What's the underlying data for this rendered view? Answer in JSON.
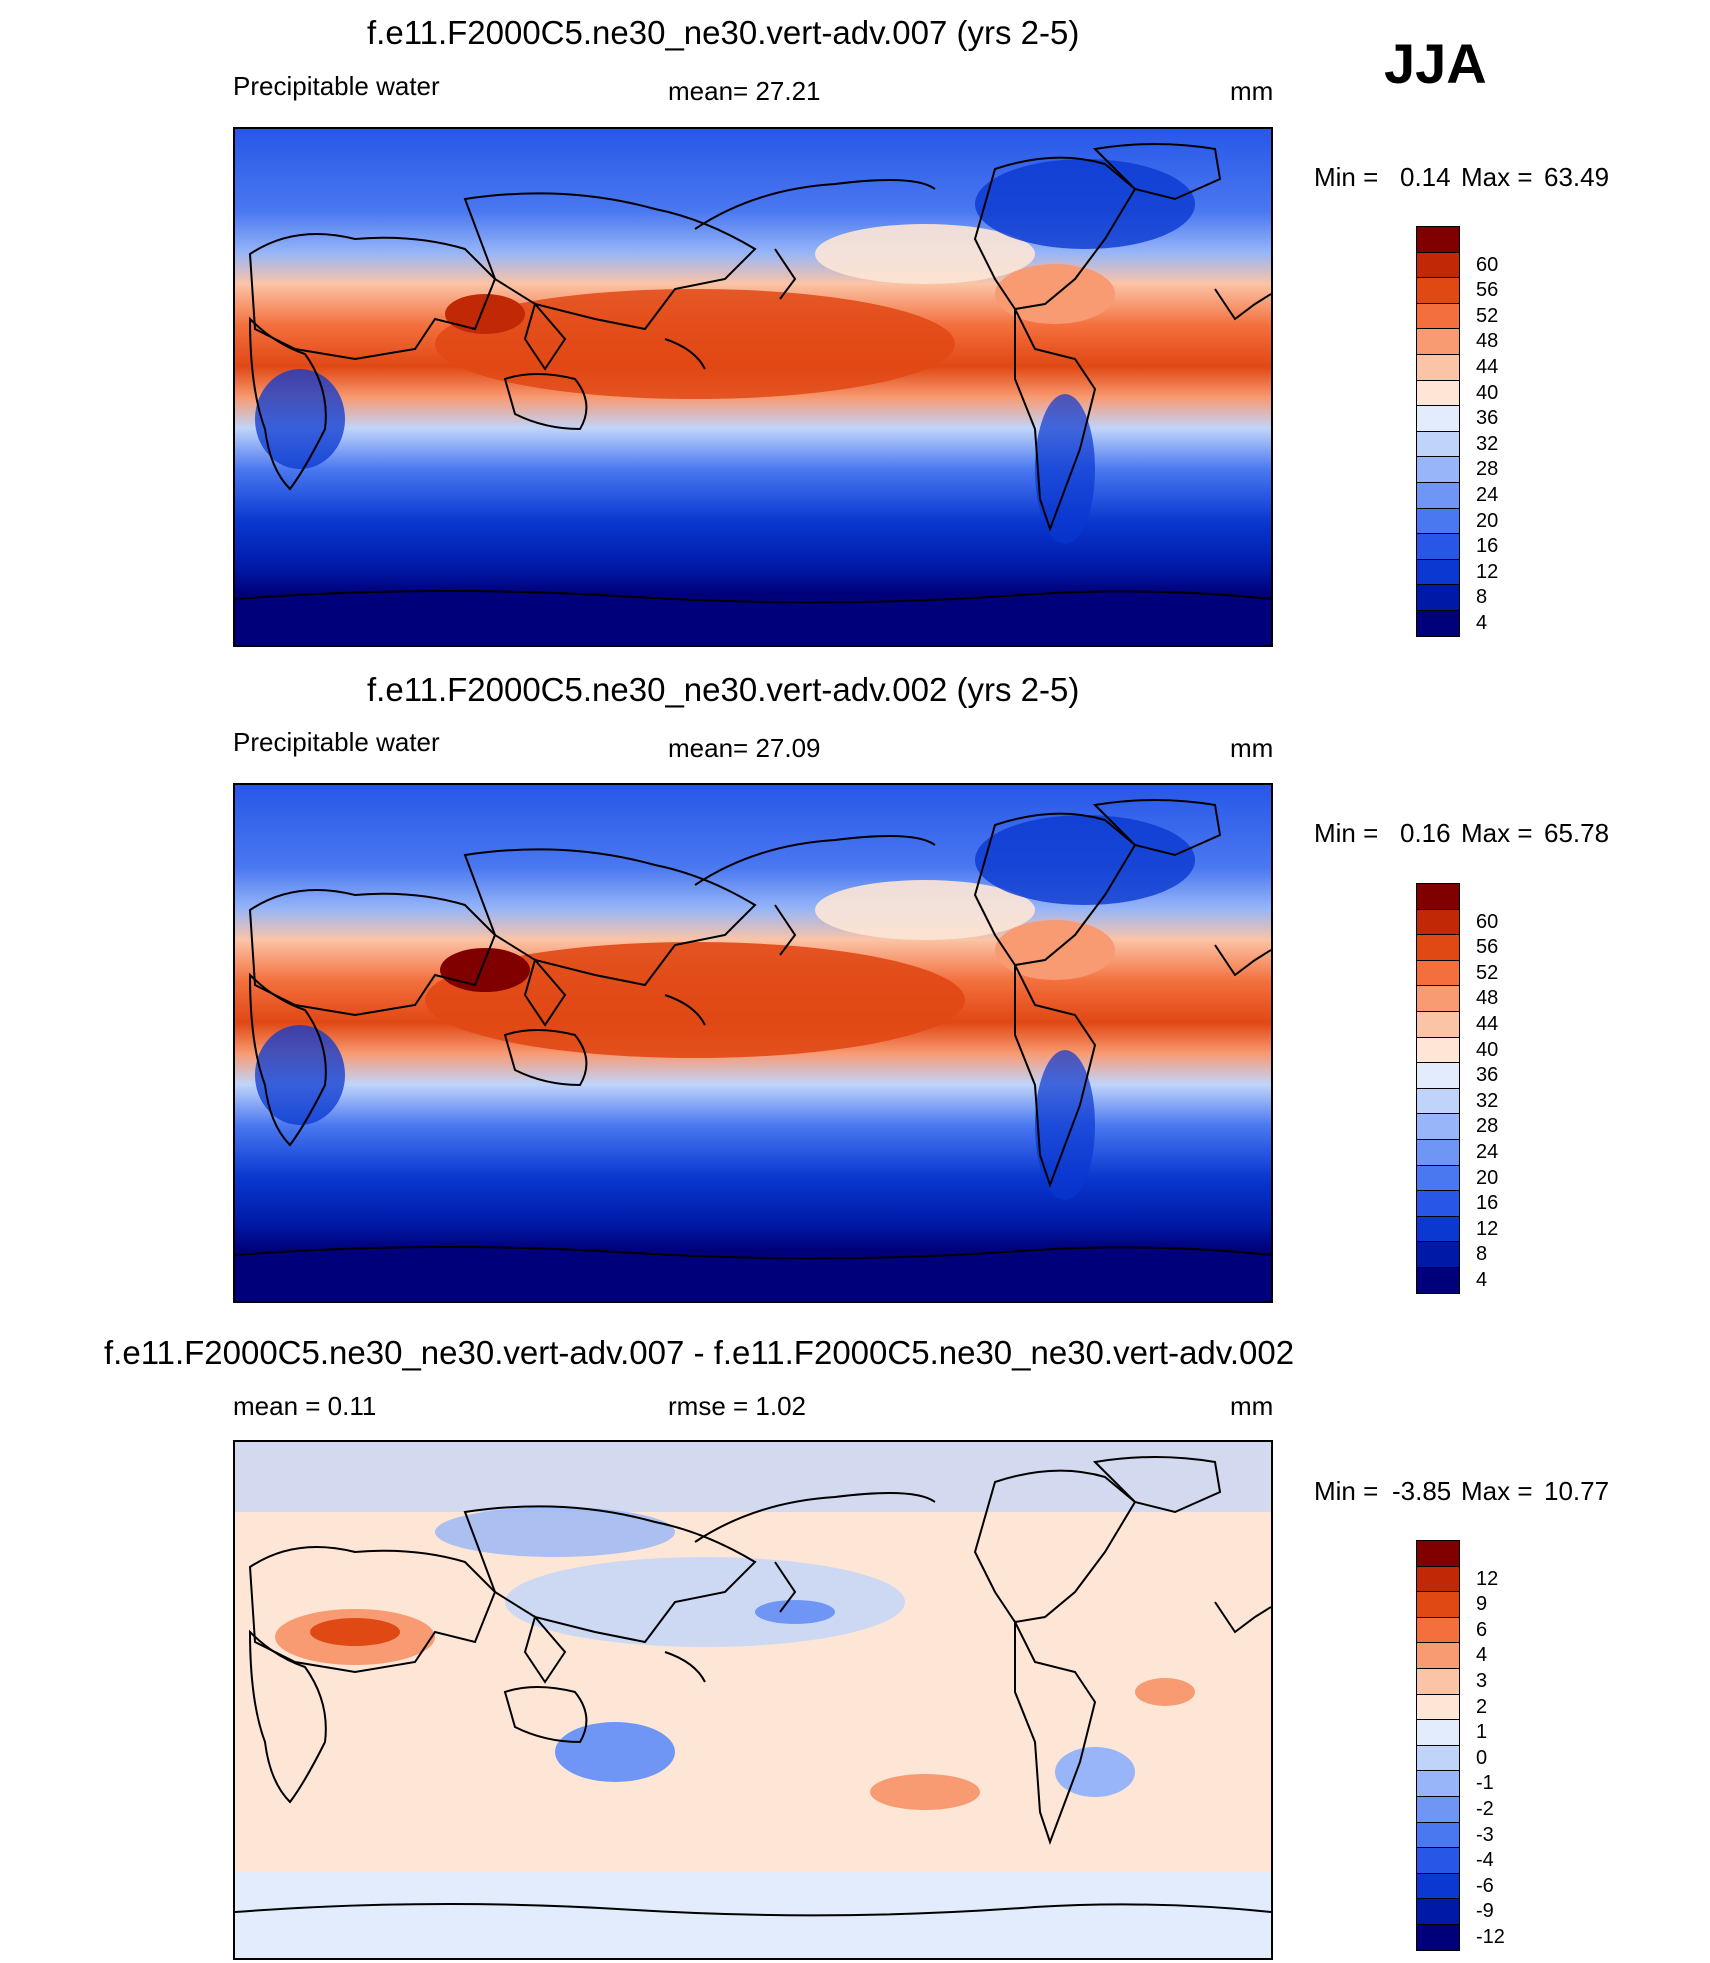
{
  "season": "JJA",
  "chart_data": [
    {
      "type": "heatmap",
      "title": "f.e11.F2000C5.ne30_ne30.vert-adv.007 (yrs 2-5)",
      "left_label": "Precipitable water",
      "center_label": "mean=  27.21",
      "units": "mm",
      "min_label": "Min =",
      "max_label": "Max =",
      "min": "0.14",
      "max": "63.49",
      "levels": [
        4,
        8,
        12,
        16,
        20,
        24,
        28,
        32,
        36,
        40,
        44,
        48,
        52,
        56,
        60
      ],
      "colors": [
        "#00007a",
        "#001aa8",
        "#0a38d0",
        "#2857e8",
        "#4a78f0",
        "#6f96f5",
        "#97b5f8",
        "#c0d4fa",
        "#e2ecfc",
        "#fde6d6",
        "#fbc4a6",
        "#f89a72",
        "#f3703e",
        "#e04814",
        "#c02806",
        "#800000"
      ]
    },
    {
      "type": "heatmap",
      "title": "f.e11.F2000C5.ne30_ne30.vert-adv.002 (yrs 2-5)",
      "left_label": "Precipitable water",
      "center_label": "mean=  27.09",
      "units": "mm",
      "min_label": "Min =",
      "max_label": "Max =",
      "min": "0.16",
      "max": "65.78",
      "levels": [
        4,
        8,
        12,
        16,
        20,
        24,
        28,
        32,
        36,
        40,
        44,
        48,
        52,
        56,
        60
      ],
      "colors": [
        "#00007a",
        "#001aa8",
        "#0a38d0",
        "#2857e8",
        "#4a78f0",
        "#6f96f5",
        "#97b5f8",
        "#c0d4fa",
        "#e2ecfc",
        "#fde6d6",
        "#fbc4a6",
        "#f89a72",
        "#f3703e",
        "#e04814",
        "#c02806",
        "#800000"
      ]
    },
    {
      "type": "heatmap",
      "title": "f.e11.F2000C5.ne30_ne30.vert-adv.007 - f.e11.F2000C5.ne30_ne30.vert-adv.002",
      "left_label": "mean =    0.11",
      "center_label": "rmse =    1.02",
      "units": "mm",
      "min_label": "Min =",
      "max_label": "Max =",
      "min": "-3.85",
      "max": "10.77",
      "levels": [
        -12,
        -9,
        -6,
        -4,
        -3,
        -2,
        -1,
        0,
        1,
        2,
        3,
        4,
        6,
        9,
        12
      ],
      "colors": [
        "#00007a",
        "#001aa8",
        "#0a38d0",
        "#2857e8",
        "#4a78f0",
        "#6f96f5",
        "#97b5f8",
        "#c0d4fa",
        "#e2ecfc",
        "#fde6d6",
        "#fbc4a6",
        "#f89a72",
        "#f3703e",
        "#e04814",
        "#c02806",
        "#800000"
      ]
    }
  ]
}
